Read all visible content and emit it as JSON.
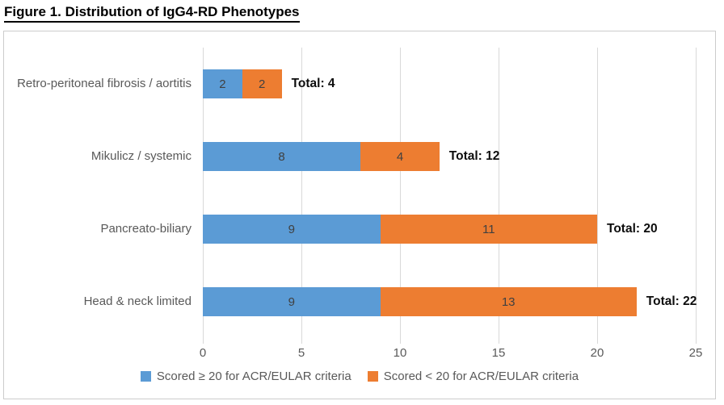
{
  "title": "Figure 1. Distribution of IgG4-RD Phenotypes",
  "chart_data": {
    "type": "bar",
    "orientation": "horizontal",
    "stacked": true,
    "title": "Figure 1. Distribution of IgG4-RD Phenotypes",
    "categories": [
      "Retro-peritoneal fibrosis / aortitis",
      "Mikulicz / systemic",
      "Pancreato-biliary",
      "Head & neck limited"
    ],
    "categories_order": "top-to-bottom",
    "series": [
      {
        "name": "Scored ≥ 20 for ACR/EULAR criteria",
        "name_key": "scored-ge-20",
        "color": "#5B9BD5",
        "values": [
          2,
          8,
          9,
          9
        ]
      },
      {
        "name": "Scored < 20 for ACR/EULAR criteria",
        "name_key": "scored-lt-20",
        "color": "#ED7D31",
        "values": [
          2,
          4,
          11,
          13
        ]
      }
    ],
    "total_labels": [
      "Total: 4",
      "Total: 12",
      "Total: 20",
      "Total: 22"
    ],
    "totals": [
      4,
      12,
      20,
      22
    ],
    "x_ticks": [
      0,
      5,
      10,
      15,
      20,
      25
    ],
    "xlim": [
      0,
      25
    ],
    "xlabel": "",
    "ylabel": "",
    "grid": "vertical",
    "gridline_color": "#d9d9d9",
    "legend_position": "bottom",
    "data_label_color": "#404040",
    "axis_text_color": "#595959"
  }
}
